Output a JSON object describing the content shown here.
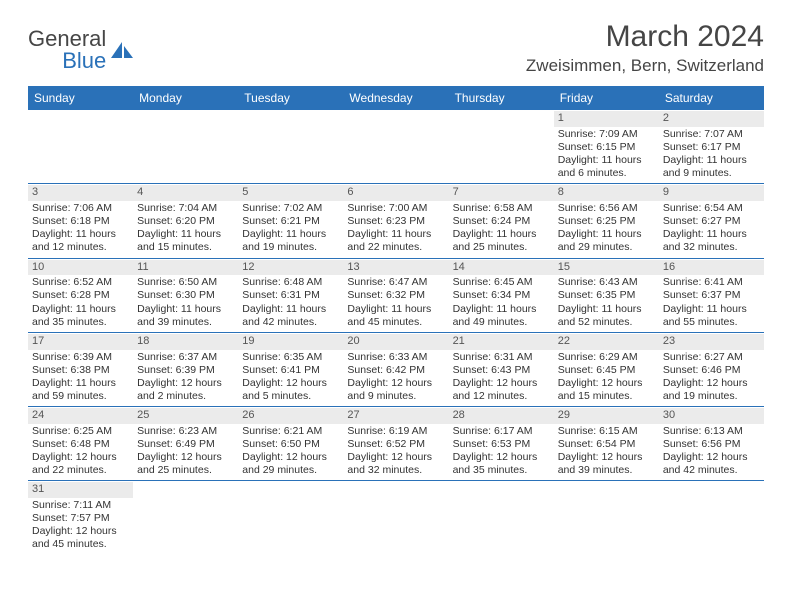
{
  "brand": {
    "word1": "General",
    "word2": "Blue",
    "logo_fill": "#2a71b8"
  },
  "title": "March 2024",
  "location": "Zweisimmen, Bern, Switzerland",
  "header_bg": "#2a71b8",
  "header_fg": "#ffffff",
  "row_border": "#2a71b8",
  "daynum_bg": "#ebebeb",
  "text_color": "#333333",
  "weekdays": [
    "Sunday",
    "Monday",
    "Tuesday",
    "Wednesday",
    "Thursday",
    "Friday",
    "Saturday"
  ],
  "weeks": [
    [
      null,
      null,
      null,
      null,
      null,
      {
        "n": "1",
        "sr": "Sunrise: 7:09 AM",
        "ss": "Sunset: 6:15 PM",
        "d1": "Daylight: 11 hours",
        "d2": "and 6 minutes."
      },
      {
        "n": "2",
        "sr": "Sunrise: 7:07 AM",
        "ss": "Sunset: 6:17 PM",
        "d1": "Daylight: 11 hours",
        "d2": "and 9 minutes."
      }
    ],
    [
      {
        "n": "3",
        "sr": "Sunrise: 7:06 AM",
        "ss": "Sunset: 6:18 PM",
        "d1": "Daylight: 11 hours",
        "d2": "and 12 minutes."
      },
      {
        "n": "4",
        "sr": "Sunrise: 7:04 AM",
        "ss": "Sunset: 6:20 PM",
        "d1": "Daylight: 11 hours",
        "d2": "and 15 minutes."
      },
      {
        "n": "5",
        "sr": "Sunrise: 7:02 AM",
        "ss": "Sunset: 6:21 PM",
        "d1": "Daylight: 11 hours",
        "d2": "and 19 minutes."
      },
      {
        "n": "6",
        "sr": "Sunrise: 7:00 AM",
        "ss": "Sunset: 6:23 PM",
        "d1": "Daylight: 11 hours",
        "d2": "and 22 minutes."
      },
      {
        "n": "7",
        "sr": "Sunrise: 6:58 AM",
        "ss": "Sunset: 6:24 PM",
        "d1": "Daylight: 11 hours",
        "d2": "and 25 minutes."
      },
      {
        "n": "8",
        "sr": "Sunrise: 6:56 AM",
        "ss": "Sunset: 6:25 PM",
        "d1": "Daylight: 11 hours",
        "d2": "and 29 minutes."
      },
      {
        "n": "9",
        "sr": "Sunrise: 6:54 AM",
        "ss": "Sunset: 6:27 PM",
        "d1": "Daylight: 11 hours",
        "d2": "and 32 minutes."
      }
    ],
    [
      {
        "n": "10",
        "sr": "Sunrise: 6:52 AM",
        "ss": "Sunset: 6:28 PM",
        "d1": "Daylight: 11 hours",
        "d2": "and 35 minutes."
      },
      {
        "n": "11",
        "sr": "Sunrise: 6:50 AM",
        "ss": "Sunset: 6:30 PM",
        "d1": "Daylight: 11 hours",
        "d2": "and 39 minutes."
      },
      {
        "n": "12",
        "sr": "Sunrise: 6:48 AM",
        "ss": "Sunset: 6:31 PM",
        "d1": "Daylight: 11 hours",
        "d2": "and 42 minutes."
      },
      {
        "n": "13",
        "sr": "Sunrise: 6:47 AM",
        "ss": "Sunset: 6:32 PM",
        "d1": "Daylight: 11 hours",
        "d2": "and 45 minutes."
      },
      {
        "n": "14",
        "sr": "Sunrise: 6:45 AM",
        "ss": "Sunset: 6:34 PM",
        "d1": "Daylight: 11 hours",
        "d2": "and 49 minutes."
      },
      {
        "n": "15",
        "sr": "Sunrise: 6:43 AM",
        "ss": "Sunset: 6:35 PM",
        "d1": "Daylight: 11 hours",
        "d2": "and 52 minutes."
      },
      {
        "n": "16",
        "sr": "Sunrise: 6:41 AM",
        "ss": "Sunset: 6:37 PM",
        "d1": "Daylight: 11 hours",
        "d2": "and 55 minutes."
      }
    ],
    [
      {
        "n": "17",
        "sr": "Sunrise: 6:39 AM",
        "ss": "Sunset: 6:38 PM",
        "d1": "Daylight: 11 hours",
        "d2": "and 59 minutes."
      },
      {
        "n": "18",
        "sr": "Sunrise: 6:37 AM",
        "ss": "Sunset: 6:39 PM",
        "d1": "Daylight: 12 hours",
        "d2": "and 2 minutes."
      },
      {
        "n": "19",
        "sr": "Sunrise: 6:35 AM",
        "ss": "Sunset: 6:41 PM",
        "d1": "Daylight: 12 hours",
        "d2": "and 5 minutes."
      },
      {
        "n": "20",
        "sr": "Sunrise: 6:33 AM",
        "ss": "Sunset: 6:42 PM",
        "d1": "Daylight: 12 hours",
        "d2": "and 9 minutes."
      },
      {
        "n": "21",
        "sr": "Sunrise: 6:31 AM",
        "ss": "Sunset: 6:43 PM",
        "d1": "Daylight: 12 hours",
        "d2": "and 12 minutes."
      },
      {
        "n": "22",
        "sr": "Sunrise: 6:29 AM",
        "ss": "Sunset: 6:45 PM",
        "d1": "Daylight: 12 hours",
        "d2": "and 15 minutes."
      },
      {
        "n": "23",
        "sr": "Sunrise: 6:27 AM",
        "ss": "Sunset: 6:46 PM",
        "d1": "Daylight: 12 hours",
        "d2": "and 19 minutes."
      }
    ],
    [
      {
        "n": "24",
        "sr": "Sunrise: 6:25 AM",
        "ss": "Sunset: 6:48 PM",
        "d1": "Daylight: 12 hours",
        "d2": "and 22 minutes."
      },
      {
        "n": "25",
        "sr": "Sunrise: 6:23 AM",
        "ss": "Sunset: 6:49 PM",
        "d1": "Daylight: 12 hours",
        "d2": "and 25 minutes."
      },
      {
        "n": "26",
        "sr": "Sunrise: 6:21 AM",
        "ss": "Sunset: 6:50 PM",
        "d1": "Daylight: 12 hours",
        "d2": "and 29 minutes."
      },
      {
        "n": "27",
        "sr": "Sunrise: 6:19 AM",
        "ss": "Sunset: 6:52 PM",
        "d1": "Daylight: 12 hours",
        "d2": "and 32 minutes."
      },
      {
        "n": "28",
        "sr": "Sunrise: 6:17 AM",
        "ss": "Sunset: 6:53 PM",
        "d1": "Daylight: 12 hours",
        "d2": "and 35 minutes."
      },
      {
        "n": "29",
        "sr": "Sunrise: 6:15 AM",
        "ss": "Sunset: 6:54 PM",
        "d1": "Daylight: 12 hours",
        "d2": "and 39 minutes."
      },
      {
        "n": "30",
        "sr": "Sunrise: 6:13 AM",
        "ss": "Sunset: 6:56 PM",
        "d1": "Daylight: 12 hours",
        "d2": "and 42 minutes."
      }
    ],
    [
      {
        "n": "31",
        "sr": "Sunrise: 7:11 AM",
        "ss": "Sunset: 7:57 PM",
        "d1": "Daylight: 12 hours",
        "d2": "and 45 minutes."
      },
      null,
      null,
      null,
      null,
      null,
      null
    ]
  ]
}
